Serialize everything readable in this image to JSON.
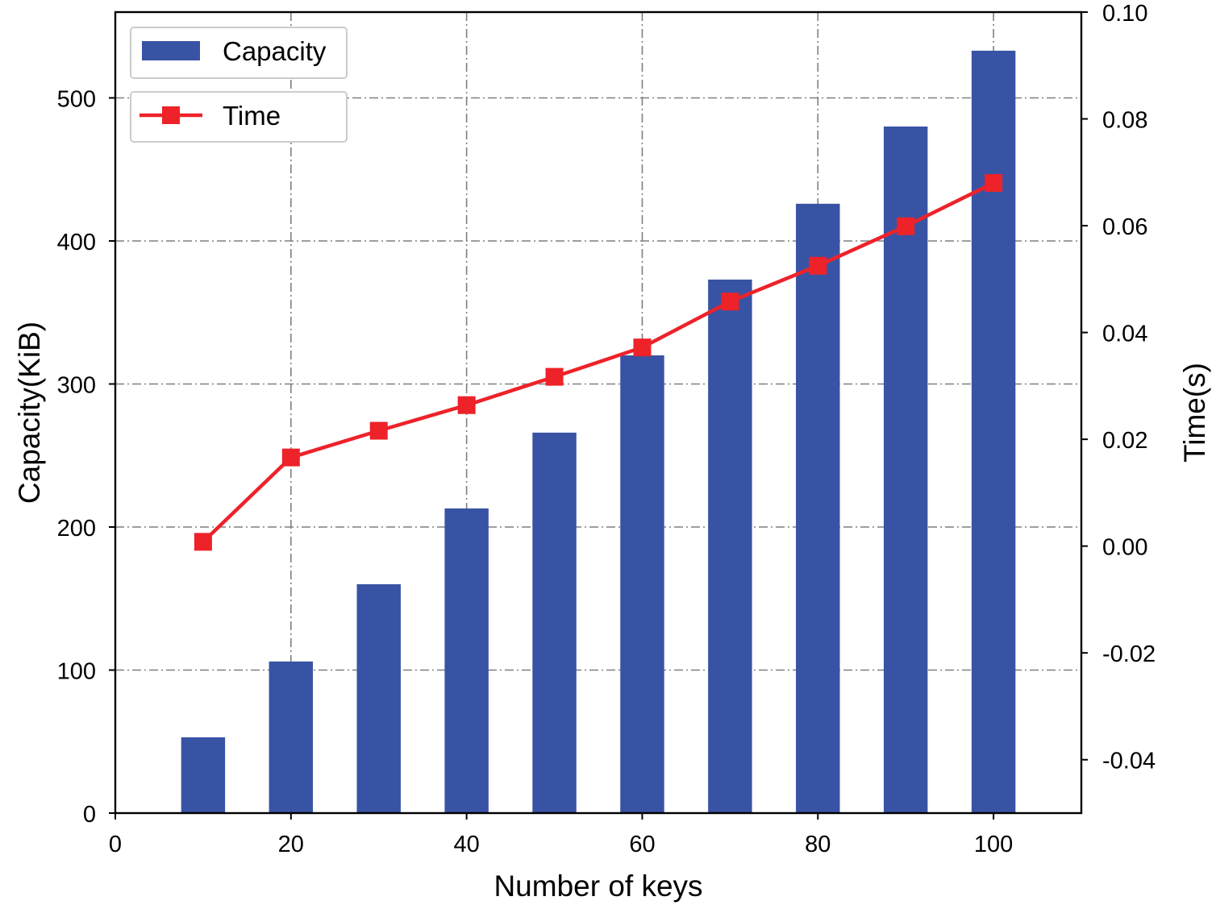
{
  "chart_data": {
    "type": "bar+line",
    "x_label": "Number of keys",
    "y_left_label": "Capacity(KiB)",
    "y_right_label": "Time(s)",
    "x_range": [
      0,
      110
    ],
    "y_left_range": [
      0,
      560
    ],
    "y_right_range": [
      -0.05,
      0.1
    ],
    "x_ticks": [
      0,
      20,
      40,
      60,
      80,
      100
    ],
    "x_tick_labels": [
      "0",
      "20",
      "40",
      "60",
      "80",
      "100"
    ],
    "y_left_ticks": [
      0,
      100,
      200,
      300,
      400,
      500
    ],
    "y_left_tick_labels": [
      "0",
      "100",
      "200",
      "300",
      "400",
      "500"
    ],
    "y_right_ticks": [
      -0.04,
      -0.02,
      0.0,
      0.02,
      0.04,
      0.06,
      0.08,
      0.1
    ],
    "y_right_tick_labels": [
      "-0.04",
      "-0.02",
      "0.00",
      "0.02",
      "0.04",
      "0.06",
      "0.08",
      "0.10"
    ],
    "grid": true,
    "legend_position": "top-left",
    "legend": [
      "Capacity",
      "Time"
    ],
    "x": [
      10,
      20,
      30,
      40,
      50,
      60,
      70,
      80,
      90,
      100
    ],
    "bar_width": 5,
    "series": [
      {
        "name": "Capacity",
        "type": "bar",
        "axis": "left",
        "color": "#3953a4",
        "values": [
          53,
          106,
          160,
          213,
          266,
          320,
          373,
          426,
          480,
          533
        ]
      },
      {
        "name": "Time",
        "type": "line",
        "axis": "right",
        "color": "#ee2229",
        "marker": "square",
        "values": [
          0.0008,
          0.0166,
          0.0216,
          0.0264,
          0.0317,
          0.0372,
          0.0458,
          0.0525,
          0.0599,
          0.068
        ]
      }
    ]
  }
}
